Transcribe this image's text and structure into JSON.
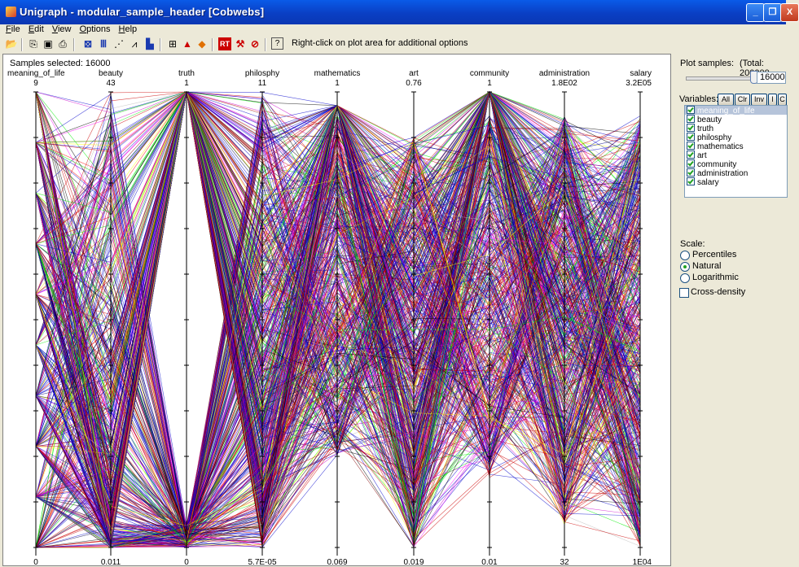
{
  "window": {
    "title": "Unigraph - modular_sample_header [Cobwebs]",
    "controls": [
      "_",
      "❐",
      "X"
    ]
  },
  "menu": [
    "File",
    "Edit",
    "View",
    "Options",
    "Help"
  ],
  "toolbar": {
    "hint": "Right-click on plot area for additional options",
    "icons": [
      "open-icon",
      "copy-icon",
      "image-icon",
      "print-icon",
      "select-icon",
      "bars-icon",
      "scatter-icon",
      "line-chart-icon",
      "histogram-icon",
      "properties-icon",
      "triangle-icon",
      "color-fill-icon",
      "rt-icon",
      "tools-icon",
      "stop-icon",
      "help-icon"
    ]
  },
  "plot": {
    "samples_selected": "Samples selected:  16000",
    "axes": [
      {
        "name": "meaning_of_life",
        "max": "9",
        "min": "0"
      },
      {
        "name": "beauty",
        "max": "43",
        "min": "0.011"
      },
      {
        "name": "truth",
        "max": "1",
        "min": "0"
      },
      {
        "name": "philosphy",
        "max": "11",
        "min": "5.7E-05"
      },
      {
        "name": "mathematics",
        "max": "1",
        "min": "0.069"
      },
      {
        "name": "art",
        "max": "0.76",
        "min": "0.019"
      },
      {
        "name": "community",
        "max": "1",
        "min": "0.01"
      },
      {
        "name": "administration",
        "max": "1.8E02",
        "min": "32"
      },
      {
        "name": "salary",
        "max": "3.2E05",
        "min": "1E04"
      }
    ],
    "line_colors": [
      "#0000cc",
      "#cc0000",
      "#000000",
      "#00ee00",
      "#ffff00",
      "#cc00cc",
      "#ff00ff",
      "#bbbbbb",
      "#800000",
      "#000080",
      "#ff0000"
    ]
  },
  "side": {
    "plot_samples_label": "Plot samples:",
    "total_label": "(Total: 200000",
    "samples_value": "16000",
    "variables_label": "Variables:",
    "var_buttons": [
      "All",
      "Clr",
      "Inv",
      "I",
      "C"
    ],
    "variables": [
      "meaning_of_life",
      "beauty",
      "truth",
      "philosphy",
      "mathematics",
      "art",
      "community",
      "administration",
      "salary"
    ],
    "scale_label": "Scale:",
    "scale_options": [
      "Percentiles",
      "Natural",
      "Logarithmic"
    ],
    "scale_selected": "Natural",
    "cross_density_label": "Cross-density"
  }
}
